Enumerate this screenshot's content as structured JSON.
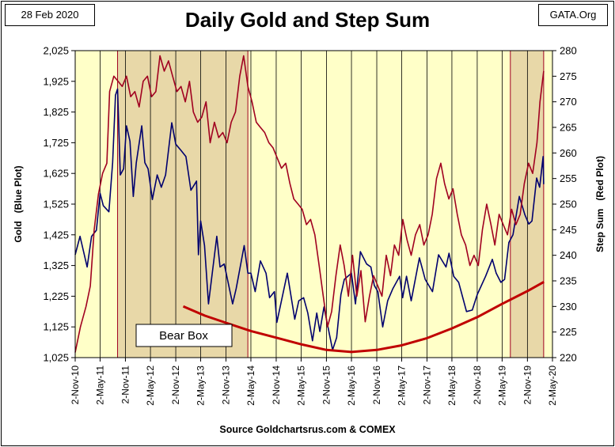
{
  "header": {
    "date": "28 Feb 2020",
    "brand": "GATA.Org",
    "title": "Daily Gold and Step Sum"
  },
  "footer": {
    "source": "Source Goldchartsrus.com & COMEX"
  },
  "chart_data": {
    "type": "line",
    "title": "Daily Gold and Step Sum",
    "x_dates": [
      "2-Nov-10",
      "2-May-11",
      "2-Nov-11",
      "2-May-12",
      "2-Nov-12",
      "2-May-13",
      "2-Nov-13",
      "2-May-14",
      "2-Nov-14",
      "2-May-15",
      "2-Nov-15",
      "2-May-16",
      "2-Nov-16",
      "2-May-17",
      "2-Nov-17",
      "2-May-18",
      "2-Nov-18",
      "2-May-19",
      "2-Nov-19",
      "2-May-20"
    ],
    "xlim": [
      "2010-11-02",
      "2020-05-02"
    ],
    "y_left": {
      "label": "Gold   (Blue Plot)",
      "ylim": [
        1025,
        2025
      ],
      "ticks": [
        "1,025",
        "1,125",
        "1,225",
        "1,325",
        "1,425",
        "1,525",
        "1,625",
        "1,725",
        "1,825",
        "1,925",
        "2,025"
      ]
    },
    "y_right": {
      "label": "Step Sum   (Red Plot)",
      "ylim": [
        220,
        280
      ],
      "ticks": [
        "220",
        "225",
        "230",
        "235",
        "240",
        "245",
        "250",
        "255",
        "260",
        "265",
        "270",
        "275",
        "280"
      ]
    },
    "background_color": "#ffffc8",
    "box_color": "#e8d8a8",
    "bear_boxes": [
      {
        "start": "2011-09-06",
        "end": "2014-04-10"
      },
      {
        "start": "2019-07-01",
        "end": "2020-02-28"
      }
    ],
    "annotations": [
      {
        "text": "Bear Box"
      }
    ],
    "series": [
      {
        "axis": "left",
        "color": "#00006e",
        "points": [
          [
            "2010-11-02",
            1360
          ],
          [
            "2010-12-07",
            1420
          ],
          [
            "2011-01-28",
            1320
          ],
          [
            "2011-03-01",
            1420
          ],
          [
            "2011-04-05",
            1440
          ],
          [
            "2011-05-02",
            1560
          ],
          [
            "2011-05-25",
            1520
          ],
          [
            "2011-07-05",
            1500
          ],
          [
            "2011-08-01",
            1660
          ],
          [
            "2011-08-22",
            1880
          ],
          [
            "2011-09-06",
            1900
          ],
          [
            "2011-09-26",
            1620
          ],
          [
            "2011-10-20",
            1640
          ],
          [
            "2011-11-10",
            1780
          ],
          [
            "2011-12-05",
            1730
          ],
          [
            "2011-12-29",
            1550
          ],
          [
            "2012-01-20",
            1660
          ],
          [
            "2012-02-29",
            1780
          ],
          [
            "2012-03-22",
            1660
          ],
          [
            "2012-04-15",
            1640
          ],
          [
            "2012-05-16",
            1540
          ],
          [
            "2012-06-20",
            1620
          ],
          [
            "2012-07-20",
            1580
          ],
          [
            "2012-08-20",
            1620
          ],
          [
            "2012-10-04",
            1790
          ],
          [
            "2012-11-02",
            1720
          ],
          [
            "2012-12-10",
            1700
          ],
          [
            "2013-01-15",
            1680
          ],
          [
            "2013-02-20",
            1570
          ],
          [
            "2013-04-02",
            1600
          ],
          [
            "2013-04-16",
            1360
          ],
          [
            "2013-05-02",
            1470
          ],
          [
            "2013-05-30",
            1390
          ],
          [
            "2013-06-28",
            1200
          ],
          [
            "2013-08-27",
            1420
          ],
          [
            "2013-09-20",
            1320
          ],
          [
            "2013-10-20",
            1330
          ],
          [
            "2013-12-20",
            1200
          ],
          [
            "2014-01-15",
            1250
          ],
          [
            "2014-03-14",
            1390
          ],
          [
            "2014-04-10",
            1300
          ],
          [
            "2014-05-02",
            1300
          ],
          [
            "2014-06-02",
            1240
          ],
          [
            "2014-07-10",
            1340
          ],
          [
            "2014-08-20",
            1300
          ],
          [
            "2014-09-15",
            1220
          ],
          [
            "2014-10-20",
            1240
          ],
          [
            "2014-11-07",
            1140
          ],
          [
            "2015-01-22",
            1300
          ],
          [
            "2015-03-17",
            1150
          ],
          [
            "2015-04-15",
            1210
          ],
          [
            "2015-05-20",
            1220
          ],
          [
            "2015-06-20",
            1170
          ],
          [
            "2015-07-24",
            1080
          ],
          [
            "2015-08-24",
            1170
          ],
          [
            "2015-09-15",
            1110
          ],
          [
            "2015-10-15",
            1190
          ],
          [
            "2015-12-17",
            1050
          ],
          [
            "2016-01-15",
            1090
          ],
          [
            "2016-02-15",
            1230
          ],
          [
            "2016-03-11",
            1280
          ],
          [
            "2016-05-02",
            1300
          ],
          [
            "2016-05-31",
            1200
          ],
          [
            "2016-07-06",
            1370
          ],
          [
            "2016-08-20",
            1330
          ],
          [
            "2016-09-20",
            1320
          ],
          [
            "2016-10-15",
            1260
          ],
          [
            "2016-11-10",
            1240
          ],
          [
            "2016-12-15",
            1125
          ],
          [
            "2017-01-20",
            1210
          ],
          [
            "2017-02-27",
            1250
          ],
          [
            "2017-04-17",
            1290
          ],
          [
            "2017-05-09",
            1220
          ],
          [
            "2017-06-06",
            1290
          ],
          [
            "2017-07-10",
            1210
          ],
          [
            "2017-09-08",
            1350
          ],
          [
            "2017-10-20",
            1280
          ],
          [
            "2017-12-12",
            1240
          ],
          [
            "2018-01-25",
            1360
          ],
          [
            "2018-03-20",
            1320
          ],
          [
            "2018-04-11",
            1365
          ],
          [
            "2018-05-15",
            1290
          ],
          [
            "2018-06-20",
            1270
          ],
          [
            "2018-08-16",
            1175
          ],
          [
            "2018-09-27",
            1180
          ],
          [
            "2018-11-02",
            1230
          ],
          [
            "2019-01-02",
            1290
          ],
          [
            "2019-02-20",
            1345
          ],
          [
            "2019-03-20",
            1300
          ],
          [
            "2019-04-23",
            1270
          ],
          [
            "2019-05-20",
            1280
          ],
          [
            "2019-06-20",
            1400
          ],
          [
            "2019-07-20",
            1425
          ],
          [
            "2019-09-04",
            1550
          ],
          [
            "2019-10-15",
            1490
          ],
          [
            "2019-11-12",
            1460
          ],
          [
            "2019-12-05",
            1470
          ],
          [
            "2020-01-08",
            1610
          ],
          [
            "2020-01-30",
            1580
          ],
          [
            "2020-02-24",
            1680
          ],
          [
            "2020-02-28",
            1590
          ]
        ]
      },
      {
        "axis": "right",
        "color": "#a00020",
        "points": [
          [
            "2010-11-02",
            221
          ],
          [
            "2010-12-10",
            226
          ],
          [
            "2011-01-20",
            230
          ],
          [
            "2011-02-20",
            234
          ],
          [
            "2011-03-20",
            245
          ],
          [
            "2011-04-20",
            252
          ],
          [
            "2011-05-20",
            256
          ],
          [
            "2011-06-20",
            258
          ],
          [
            "2011-07-10",
            272
          ],
          [
            "2011-08-10",
            275
          ],
          [
            "2011-09-10",
            274
          ],
          [
            "2011-10-10",
            273
          ],
          [
            "2011-11-10",
            275
          ],
          [
            "2011-12-10",
            271
          ],
          [
            "2012-01-10",
            272
          ],
          [
            "2012-02-10",
            269
          ],
          [
            "2012-03-10",
            274
          ],
          [
            "2012-04-10",
            275
          ],
          [
            "2012-05-10",
            271
          ],
          [
            "2012-06-10",
            272
          ],
          [
            "2012-07-10",
            279
          ],
          [
            "2012-08-10",
            276
          ],
          [
            "2012-09-10",
            278
          ],
          [
            "2012-10-10",
            275
          ],
          [
            "2012-11-10",
            272
          ],
          [
            "2012-12-10",
            273
          ],
          [
            "2013-01-10",
            270
          ],
          [
            "2013-02-10",
            274
          ],
          [
            "2013-03-10",
            268
          ],
          [
            "2013-04-10",
            266
          ],
          [
            "2013-05-10",
            267
          ],
          [
            "2013-06-10",
            270
          ],
          [
            "2013-07-10",
            262
          ],
          [
            "2013-08-10",
            266
          ],
          [
            "2013-09-10",
            263
          ],
          [
            "2013-10-10",
            264
          ],
          [
            "2013-11-10",
            262
          ],
          [
            "2013-12-10",
            266
          ],
          [
            "2014-01-10",
            268
          ],
          [
            "2014-02-10",
            275
          ],
          [
            "2014-03-10",
            279
          ],
          [
            "2014-04-10",
            273
          ],
          [
            "2014-05-10",
            270
          ],
          [
            "2014-06-10",
            266
          ],
          [
            "2014-07-10",
            265
          ],
          [
            "2014-08-10",
            264
          ],
          [
            "2014-09-10",
            262
          ],
          [
            "2014-10-10",
            261
          ],
          [
            "2014-11-10",
            259
          ],
          [
            "2014-12-10",
            257
          ],
          [
            "2015-01-10",
            258
          ],
          [
            "2015-02-10",
            254
          ],
          [
            "2015-03-10",
            251
          ],
          [
            "2015-04-10",
            250
          ],
          [
            "2015-05-10",
            249
          ],
          [
            "2015-06-10",
            246
          ],
          [
            "2015-07-10",
            247
          ],
          [
            "2015-08-10",
            244
          ],
          [
            "2015-09-10",
            238
          ],
          [
            "2015-10-10",
            232
          ],
          [
            "2015-11-10",
            226
          ],
          [
            "2015-12-10",
            229
          ],
          [
            "2016-01-10",
            236
          ],
          [
            "2016-02-10",
            242
          ],
          [
            "2016-03-10",
            238
          ],
          [
            "2016-04-10",
            232
          ],
          [
            "2016-05-10",
            240
          ],
          [
            "2016-06-10",
            232
          ],
          [
            "2016-07-10",
            237
          ],
          [
            "2016-08-10",
            227
          ],
          [
            "2016-09-10",
            232
          ],
          [
            "2016-10-10",
            236
          ],
          [
            "2016-11-10",
            234
          ],
          [
            "2016-12-10",
            232
          ],
          [
            "2017-01-10",
            240
          ],
          [
            "2017-02-10",
            236
          ],
          [
            "2017-03-10",
            242
          ],
          [
            "2017-04-10",
            240
          ],
          [
            "2017-05-10",
            247
          ],
          [
            "2017-06-10",
            243
          ],
          [
            "2017-07-10",
            240
          ],
          [
            "2017-08-10",
            244
          ],
          [
            "2017-09-10",
            246
          ],
          [
            "2017-10-10",
            242
          ],
          [
            "2017-11-10",
            244
          ],
          [
            "2017-12-10",
            248
          ],
          [
            "2018-01-10",
            255
          ],
          [
            "2018-02-10",
            258
          ],
          [
            "2018-03-10",
            254
          ],
          [
            "2018-04-10",
            251
          ],
          [
            "2018-05-10",
            253
          ],
          [
            "2018-06-10",
            248
          ],
          [
            "2018-07-10",
            244
          ],
          [
            "2018-08-10",
            242
          ],
          [
            "2018-09-10",
            238
          ],
          [
            "2018-10-10",
            240
          ],
          [
            "2018-11-10",
            238
          ],
          [
            "2018-12-10",
            245
          ],
          [
            "2019-01-10",
            250
          ],
          [
            "2019-02-10",
            246
          ],
          [
            "2019-03-10",
            242
          ],
          [
            "2019-04-10",
            248
          ],
          [
            "2019-05-10",
            246
          ],
          [
            "2019-06-10",
            244
          ],
          [
            "2019-07-10",
            249
          ],
          [
            "2019-08-10",
            246
          ],
          [
            "2019-09-10",
            248
          ],
          [
            "2019-10-10",
            254
          ],
          [
            "2019-11-10",
            258
          ],
          [
            "2019-12-10",
            256
          ],
          [
            "2020-01-10",
            262
          ],
          [
            "2020-02-01",
            270
          ],
          [
            "2020-02-28",
            276
          ]
        ]
      },
      {
        "axis": "right",
        "color": "#c00000",
        "points": [
          [
            "2012-12-26",
            230
          ],
          [
            "2013-06-02",
            228.2
          ],
          [
            "2013-11-02",
            226.8
          ],
          [
            "2014-05-02",
            225.2
          ],
          [
            "2014-11-02",
            223.9
          ],
          [
            "2015-05-02",
            222.6
          ],
          [
            "2015-11-02",
            221.5
          ],
          [
            "2016-05-02",
            221.1
          ],
          [
            "2016-11-02",
            221.5
          ],
          [
            "2017-05-02",
            222.4
          ],
          [
            "2017-11-02",
            223.8
          ],
          [
            "2018-05-02",
            225.7
          ],
          [
            "2018-11-02",
            227.9
          ],
          [
            "2019-05-02",
            230.5
          ],
          [
            "2019-11-02",
            233.0
          ],
          [
            "2020-03-01",
            234.8
          ]
        ]
      }
    ]
  }
}
